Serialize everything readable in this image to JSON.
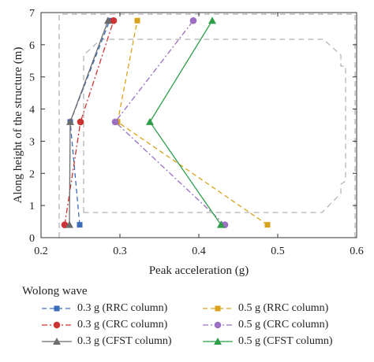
{
  "chart_data": {
    "type": "line",
    "xlabel": "Peak acceleration (g)",
    "ylabel": "Along height of the structure (m)",
    "xlim": [
      0.2,
      0.6
    ],
    "ylim": [
      0,
      7
    ],
    "xticks": [
      "0.2",
      "0.3",
      "0.4",
      "0.5",
      "0.6"
    ],
    "yticks": [
      "0",
      "1",
      "2",
      "3",
      "4",
      "5",
      "6",
      "7"
    ],
    "grid": false,
    "legend_position": "below",
    "legend_title": "Wolong wave",
    "series": [
      {
        "name": "0.3 g (RRC column)",
        "color": "#3d6cb9",
        "marker": "square",
        "dash": "6,4",
        "x": [
          0.249,
          0.237,
          0.287
        ],
        "y": [
          0.4,
          3.6,
          6.75
        ]
      },
      {
        "name": "0.3 g (CRC column)",
        "color": "#cc3333",
        "marker": "circle",
        "dash": "7,3,2,3",
        "x": [
          0.23,
          0.25,
          0.292
        ],
        "y": [
          0.4,
          3.6,
          6.75
        ]
      },
      {
        "name": "0.3 g (CFST column)",
        "color": "#6b6b6b",
        "marker": "triangle",
        "dash": "",
        "x": [
          0.236,
          0.237,
          0.285
        ],
        "y": [
          0.4,
          3.6,
          6.75
        ]
      },
      {
        "name": "0.5 g (RRC column)",
        "color": "#d9a21b",
        "marker": "square",
        "dash": "6,4",
        "x": [
          0.487,
          0.297,
          0.322
        ],
        "y": [
          0.4,
          3.6,
          6.75
        ]
      },
      {
        "name": "0.5 g (CRC column)",
        "color": "#9b6fc2",
        "marker": "circle",
        "dash": "7,3,2,3",
        "x": [
          0.433,
          0.294,
          0.393
        ],
        "y": [
          0.4,
          3.6,
          6.75
        ]
      },
      {
        "name": "0.5 g (CFST column)",
        "color": "#2e9e49",
        "marker": "triangle",
        "dash": "",
        "x": [
          0.428,
          0.338,
          0.417
        ],
        "y": [
          0.4,
          3.6,
          6.75
        ]
      }
    ]
  }
}
